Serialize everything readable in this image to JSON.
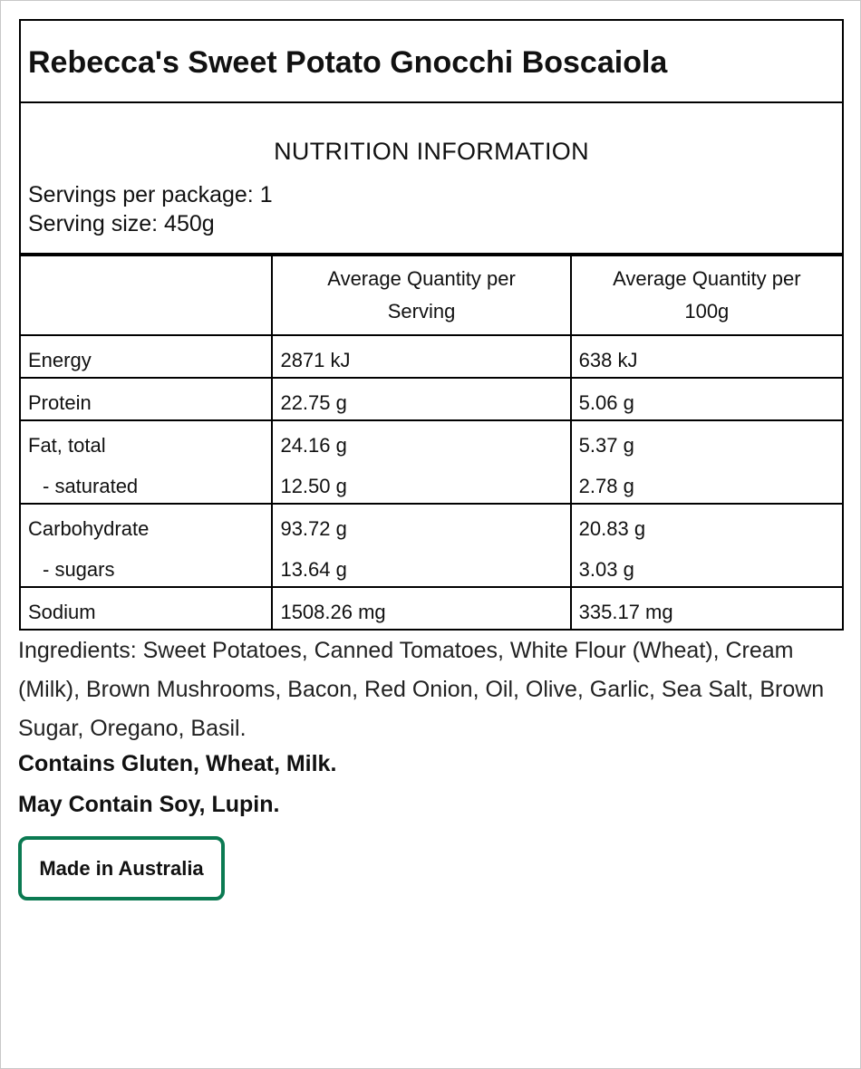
{
  "title": "Rebecca's Sweet Potato Gnocchi Boscaiola",
  "nutrition": {
    "heading": "NUTRITION INFORMATION",
    "servings_per_package": "Servings per package: 1",
    "serving_size": "Serving size: 450g",
    "columns": [
      "Average Quantity per Serving",
      "Average Quantity per 100g"
    ],
    "rows": [
      [
        [
          "Energy",
          "2871 kJ",
          "638 kJ"
        ]
      ],
      [
        [
          "Protein",
          "22.75 g",
          "5.06 g"
        ]
      ],
      [
        [
          "Fat, total",
          "24.16 g",
          "5.37 g"
        ],
        [
          "- saturated",
          "12.50 g",
          "2.78 g"
        ]
      ],
      [
        [
          "Carbohydrate",
          "93.72 g",
          "20.83 g"
        ],
        [
          "- sugars",
          "13.64 g",
          "3.03 g"
        ]
      ],
      [
        [
          "Sodium",
          "1508.26 mg",
          "335.17 mg"
        ]
      ]
    ]
  },
  "ingredients": "Ingredients: Sweet Potatoes, Canned Tomatoes, White Flour (Wheat), Cream (Milk), Brown Mushrooms, Bacon, Red Onion, Oil, Olive, Garlic, Sea Salt, Brown Sugar, Oregano, Basil.",
  "contains": "Contains Gluten, Wheat, Milk.",
  "may_contain": "May Contain Soy, Lupin.",
  "origin": "Made in Australia"
}
